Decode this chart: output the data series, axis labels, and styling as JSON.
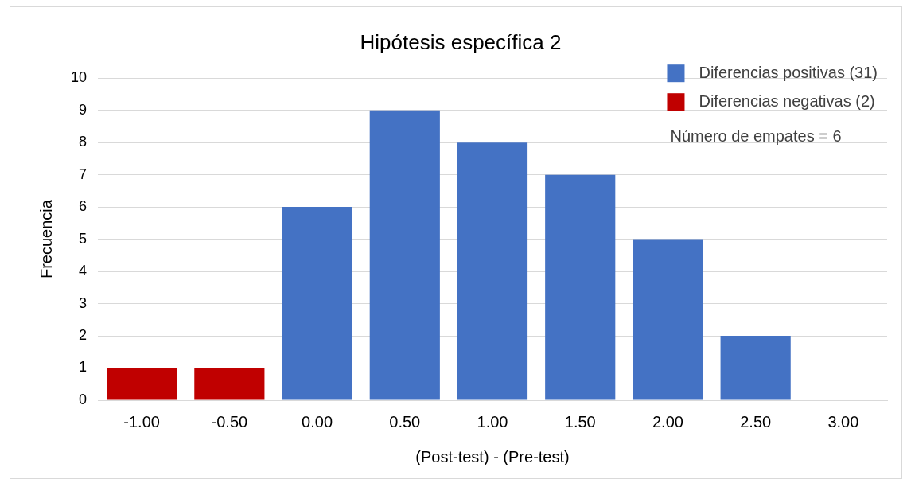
{
  "chart_data": {
    "type": "bar",
    "title": "Hipótesis específica 2",
    "xlabel": "(Post-test) - (Pre-test)",
    "ylabel": "Frecuencia",
    "categories": [
      "-1.00",
      "-0.50",
      "0.00",
      "0.50",
      "1.00",
      "1.50",
      "2.00",
      "2.50",
      "3.00"
    ],
    "series": [
      {
        "name": "Diferencias positivas (31)",
        "color": "#4472c4",
        "values": [
          null,
          null,
          6,
          9,
          8,
          7,
          5,
          2,
          0
        ]
      },
      {
        "name": "Diferencias negativas (2)",
        "color": "#c00000",
        "values": [
          1,
          1,
          null,
          null,
          null,
          null,
          null,
          null,
          null
        ]
      }
    ],
    "stacked": true,
    "ylim": [
      0,
      10
    ],
    "yticks": [
      0,
      1,
      2,
      3,
      4,
      5,
      6,
      7,
      8,
      9,
      10
    ],
    "grid": "y",
    "legend": "top right",
    "annotations": [
      "Número de empates = 6"
    ]
  }
}
